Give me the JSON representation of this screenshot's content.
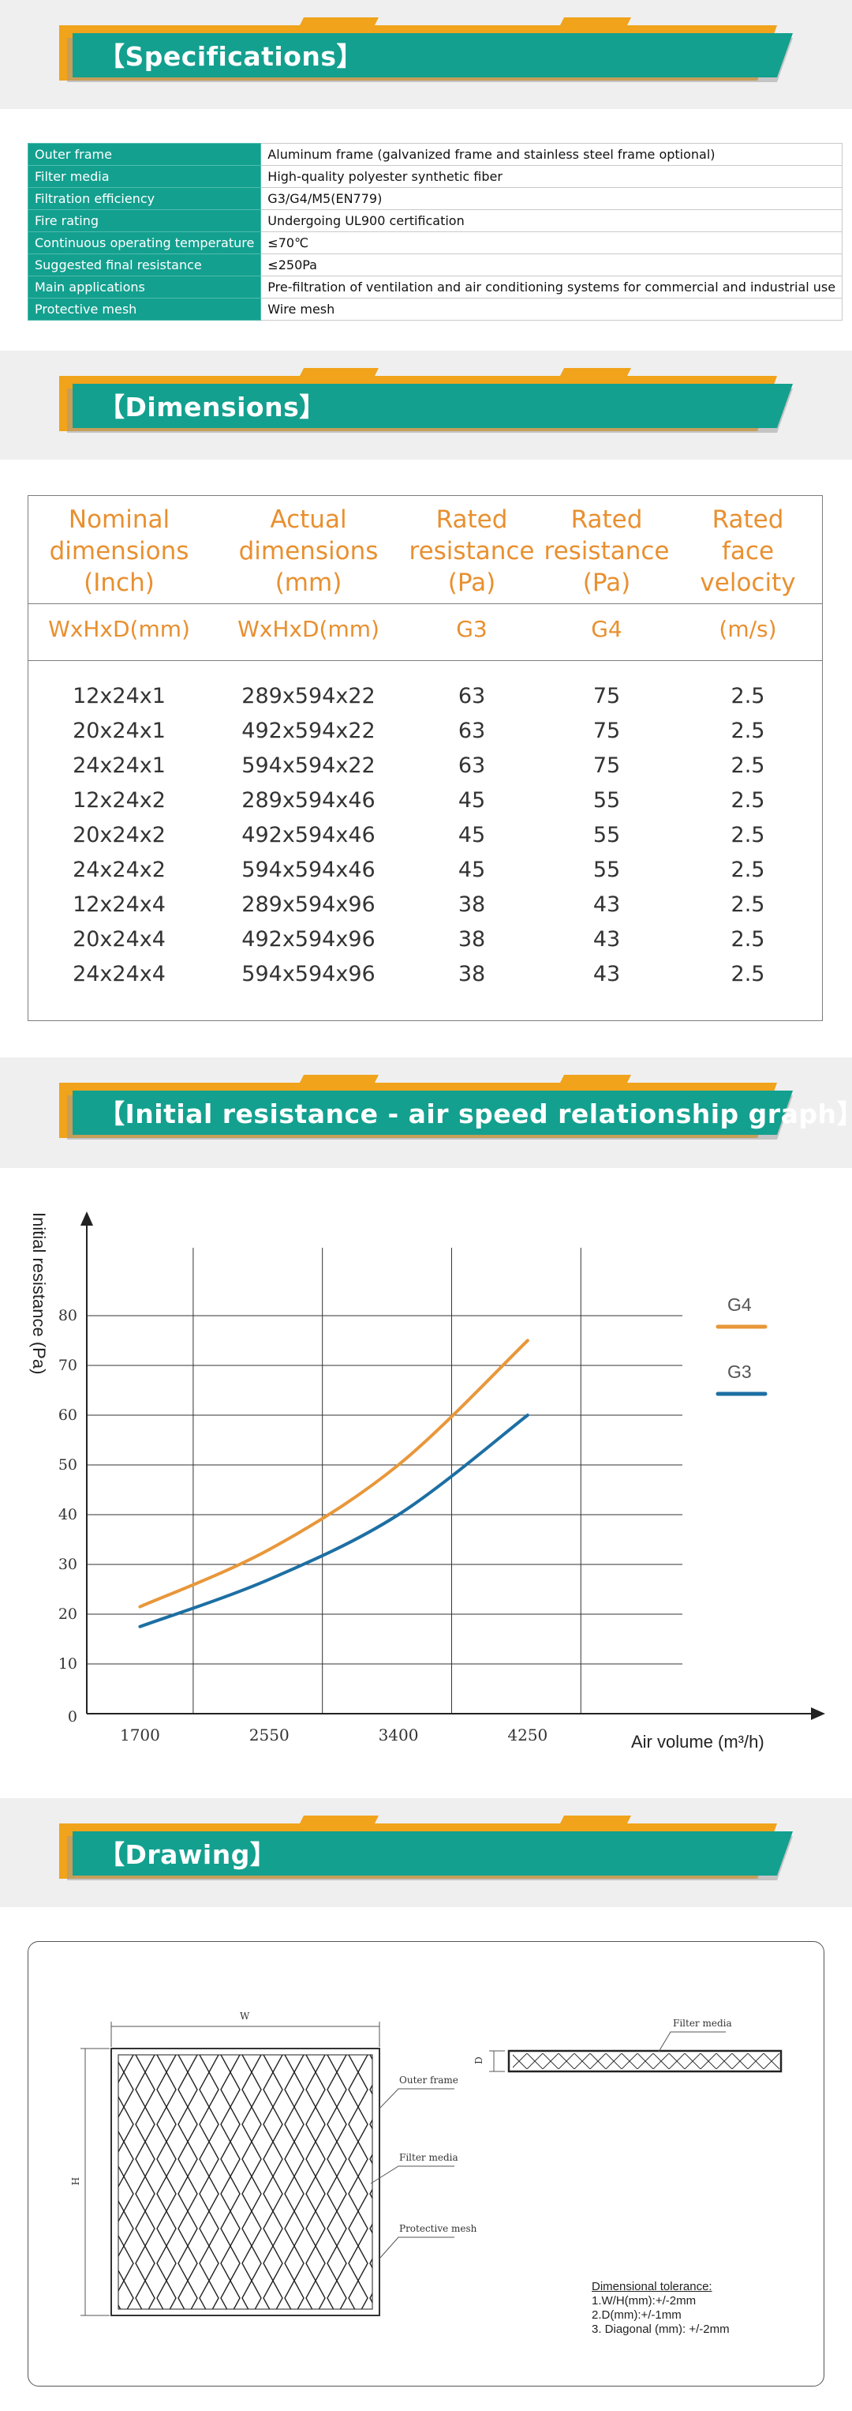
{
  "sections": {
    "specifications": "【Specifications】",
    "dimensions": "【Dimensions】",
    "graph": "【Initial resistance - air speed relationship graph】",
    "drawing": "【Drawing】"
  },
  "specs": [
    {
      "key": "Outer frame",
      "value": "Aluminum frame (galvanized frame and stainless steel frame optional)"
    },
    {
      "key": "Filter media",
      "value": "High-quality polyester synthetic fiber"
    },
    {
      "key": "Filtration efficiency",
      "value": "G3/G4/M5(EN779)"
    },
    {
      "key": "Fire rating",
      "value": "Undergoing UL900 certification"
    },
    {
      "key": "Continuous operating temperature",
      "value": "≤70℃"
    },
    {
      "key": "Suggested final resistance",
      "value": "≤250Pa"
    },
    {
      "key": "Main applications",
      "value": "Pre-filtration of ventilation and air conditioning systems for commercial and industrial use"
    },
    {
      "key": "Protective mesh",
      "value": "Wire mesh"
    }
  ],
  "dimensions_table": {
    "headers": [
      {
        "l1": "Nominal",
        "l2": "dimensions",
        "l3": "(Inch)"
      },
      {
        "l1": "Actual",
        "l2": "dimensions",
        "l3": "(mm)"
      },
      {
        "l1": "Rated",
        "l2": "resistance",
        "l3": "(Pa)"
      },
      {
        "l1": "Rated",
        "l2": "resistance",
        "l3": "(Pa)"
      },
      {
        "l1": "Rated",
        "l2": "face",
        "l3": "velocity"
      }
    ],
    "subheaders": [
      "WxHxD(mm)",
      "WxHxD(mm)",
      "G3",
      "G4",
      "(m/s)"
    ],
    "rows": [
      [
        "12x24x1",
        "289x594x22",
        "63",
        "75",
        "2.5"
      ],
      [
        "20x24x1",
        "492x594x22",
        "63",
        "75",
        "2.5"
      ],
      [
        "24x24x1",
        "594x594x22",
        "63",
        "75",
        "2.5"
      ],
      [
        "12x24x2",
        "289x594x46",
        "45",
        "55",
        "2.5"
      ],
      [
        "20x24x2",
        "492x594x46",
        "45",
        "55",
        "2.5"
      ],
      [
        "24x24x2",
        "594x594x46",
        "45",
        "55",
        "2.5"
      ],
      [
        "12x24x4",
        "289x594x96",
        "38",
        "43",
        "2.5"
      ],
      [
        "20x24x4",
        "492x594x96",
        "38",
        "43",
        "2.5"
      ],
      [
        "24x24x4",
        "594x594x96",
        "38",
        "43",
        "2.5"
      ]
    ]
  },
  "chart_data": {
    "type": "line",
    "ylabel": "Initial resistance (Pa)",
    "xlabel": "Air volume (m³/h)",
    "x_ticks": [
      "1700",
      "2550",
      "3400",
      "4250"
    ],
    "y_ticks": [
      "0",
      "10",
      "20",
      "30",
      "40",
      "50",
      "60",
      "70",
      "80"
    ],
    "ylim": [
      0,
      80
    ],
    "xlim": [
      1350,
      4800
    ],
    "grid": true,
    "legend_position": "right",
    "series": [
      {
        "name": "G4",
        "color": "#e8973a",
        "x": [
          1700,
          2550,
          3400,
          4250
        ],
        "y": [
          21.5,
          33,
          50,
          75
        ]
      },
      {
        "name": "G3",
        "color": "#1d6fa3",
        "x": [
          1700,
          2550,
          3400,
          4250
        ],
        "y": [
          17.5,
          27,
          40,
          60
        ]
      }
    ]
  },
  "drawing": {
    "w_label": "W",
    "h_label": "H",
    "d_label": "D",
    "outer_frame": "Outer frame",
    "filter_media": "Filter media",
    "protective_mesh": "Protective mesh",
    "filter_media_side": "Filter media",
    "tolerance_title": "Dimensional tolerance:",
    "tolerances": [
      "1.W/H(mm):+/-2mm",
      "2.D(mm):+/-1mm",
      "3. Diagonal (mm): +/-2mm"
    ]
  },
  "colors": {
    "teal": "#13a08f",
    "orange": "#f0a31b",
    "heading_orange": "#e89030"
  }
}
